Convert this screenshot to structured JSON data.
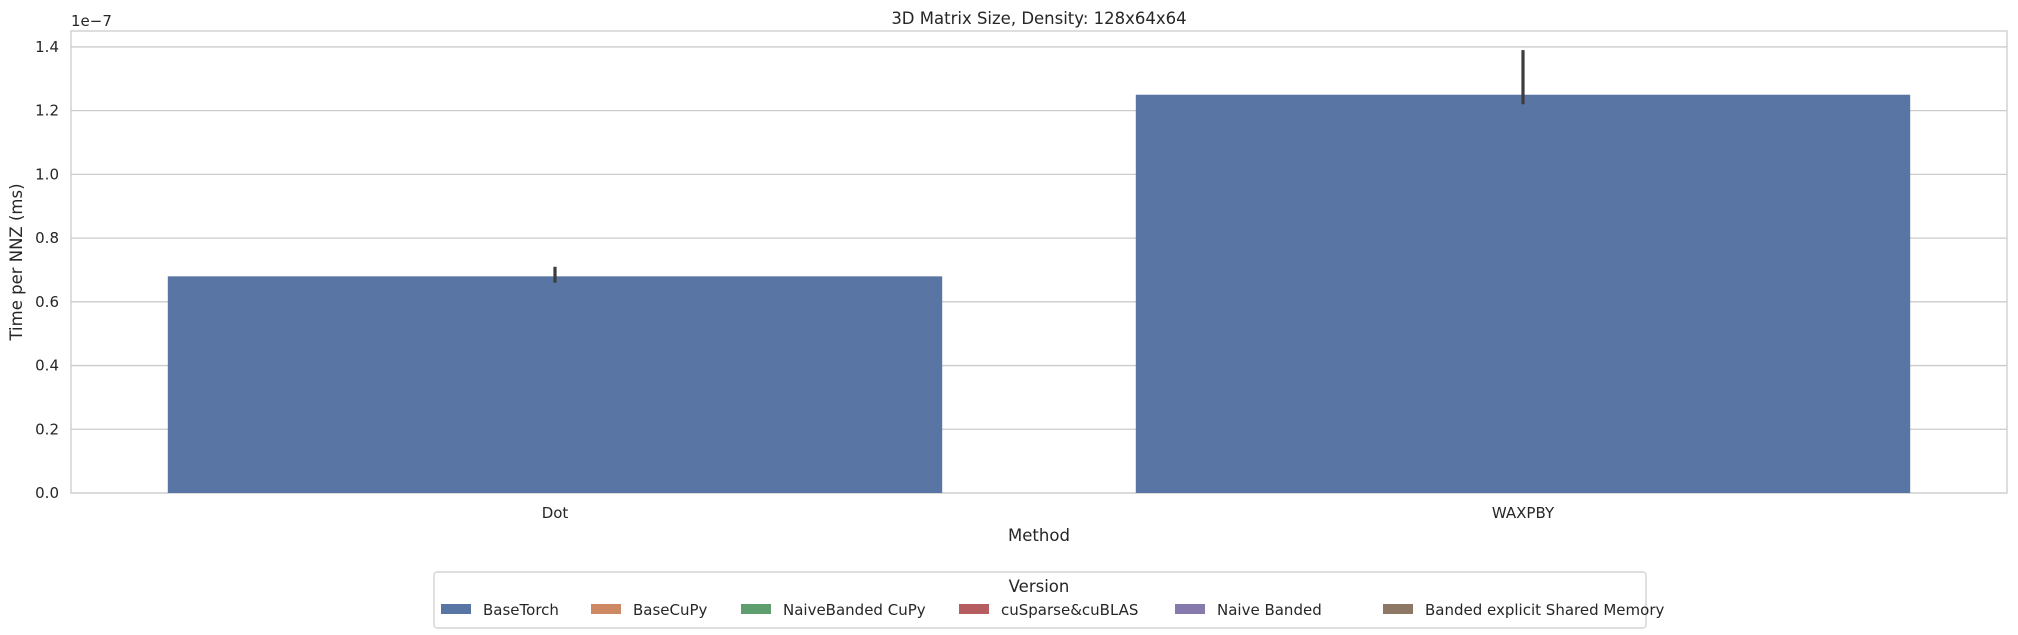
{
  "chart_data": {
    "type": "bar",
    "title": "3D Matrix Size, Density: 128x64x64",
    "xlabel": "Method",
    "ylabel": "Time per NNZ (ms)",
    "y_offset_label": "1e−7",
    "y_scale": 1e-07,
    "ylim": [
      0,
      1.45
    ],
    "yticks": [
      "0.0",
      "0.2",
      "0.4",
      "0.6",
      "0.8",
      "1.0",
      "1.2",
      "1.4"
    ],
    "categories": [
      "Dot",
      "WAXPBY"
    ],
    "grid": true,
    "series": [
      {
        "name": "BaseTorch",
        "color": "#5975a4",
        "values": [
          0.68,
          1.25
        ],
        "error_low": [
          0.66,
          1.22
        ],
        "error_high": [
          0.71,
          1.39
        ]
      },
      {
        "name": "BaseCuPy",
        "color": "#cc8963",
        "values": [
          null,
          null
        ]
      },
      {
        "name": "NaiveBanded CuPy",
        "color": "#5f9e6e",
        "values": [
          null,
          null
        ]
      },
      {
        "name": "cuSparse&cuBLAS",
        "color": "#b55d60",
        "values": [
          null,
          null
        ]
      },
      {
        "name": "Naive Banded",
        "color": "#857aab",
        "values": [
          null,
          null
        ]
      },
      {
        "name": "Banded explicit Shared Memory",
        "color": "#8d7866",
        "values": [
          null,
          null
        ]
      }
    ],
    "legend": {
      "title": "Version",
      "placement": "bottom-center"
    }
  }
}
